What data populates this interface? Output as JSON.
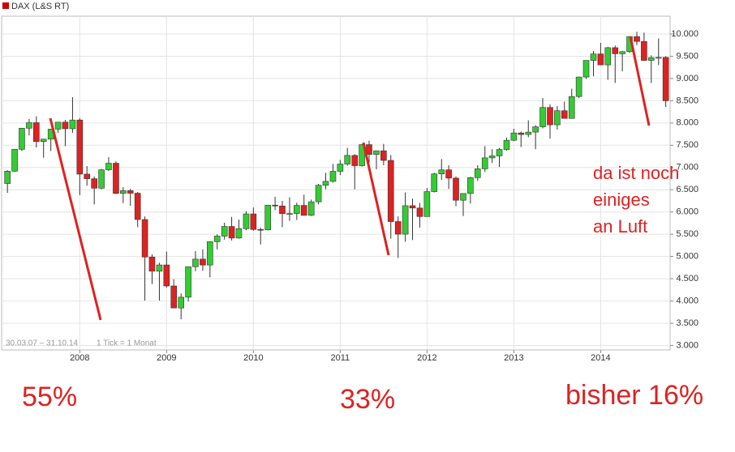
{
  "chart_data": {
    "type": "candlestick",
    "legend": "top-left",
    "grid": true,
    "up_color": "#33cc33",
    "down_color": "#dd2222",
    "series": [
      {
        "name": "DAX (L&S RT)",
        "color": "#cc0000",
        "open": [
          6640,
          6917,
          7408,
          7883,
          8007,
          7584,
          7638,
          7862,
          8019,
          7871,
          8067,
          6851,
          6748,
          6535,
          6949,
          7096,
          6418,
          6479,
          6422,
          5831,
          4988,
          4669,
          4810,
          4338,
          3843,
          4085,
          4770,
          4941,
          4809,
          5332,
          5458,
          5675,
          5415,
          5625,
          5957,
          5608,
          5598,
          6154,
          6136,
          5964,
          5966,
          6148,
          5925,
          6229,
          6601,
          6688,
          6914,
          7077,
          7272,
          7041,
          7514,
          7294,
          7376,
          7159,
          5785,
          5502,
          6141,
          6089,
          5898,
          6458,
          6856,
          6947,
          6761,
          6264,
          6416,
          6772,
          6970,
          7216,
          7260,
          7405,
          7612,
          7776,
          7742,
          7795,
          7914,
          8349,
          7959,
          8276,
          8103,
          8594,
          9033,
          9406,
          9552,
          9306,
          9692,
          9556,
          9603,
          9943,
          9833,
          9407,
          9470,
          9474
        ],
        "high": [
          6940,
          7410,
          7890,
          8090,
          8150,
          7640,
          7870,
          8020,
          8070,
          8580,
          8110,
          7030,
          6800,
          6970,
          7230,
          7140,
          6560,
          6520,
          6450,
          5900,
          5050,
          4860,
          5110,
          4490,
          4170,
          4770,
          5120,
          5160,
          5340,
          5500,
          5760,
          5890,
          5830,
          6020,
          6100,
          5650,
          6160,
          6340,
          6250,
          6330,
          6210,
          6390,
          6280,
          6630,
          6880,
          7080,
          7170,
          7440,
          7300,
          7530,
          7600,
          7380,
          7530,
          7280,
          5900,
          6440,
          6300,
          6200,
          6540,
          6880,
          7190,
          7050,
          6800,
          6420,
          6790,
          7050,
          7480,
          7410,
          7440,
          7670,
          7870,
          7810,
          8060,
          7950,
          8560,
          8420,
          8380,
          8480,
          8770,
          9040,
          9410,
          9620,
          9800,
          9710,
          9740,
          9620,
          9950,
          10050,
          10030,
          9520,
          9900,
          9500
        ],
        "low": [
          6430,
          6900,
          7370,
          7720,
          7450,
          7220,
          7370,
          7780,
          7480,
          7780,
          6380,
          6590,
          6170,
          6510,
          6920,
          6400,
          6200,
          6140,
          5660,
          4010,
          4380,
          4010,
          4300,
          3840,
          3590,
          3990,
          4670,
          4680,
          4530,
          5160,
          5380,
          5360,
          5400,
          5590,
          5580,
          5270,
          5590,
          6040,
          5660,
          5800,
          5820,
          5920,
          5910,
          6170,
          6510,
          6660,
          6830,
          7040,
          6510,
          7020,
          7110,
          6960,
          7050,
          5400,
          4970,
          5330,
          5370,
          5650,
          5900,
          6440,
          6720,
          6520,
          6130,
          5910,
          6190,
          6700,
          6900,
          7100,
          7010,
          7380,
          7590,
          7460,
          7680,
          7410,
          7880,
          7650,
          7850,
          8100,
          8100,
          8560,
          8990,
          9050,
          9300,
          8970,
          8900,
          9160,
          9580,
          9750,
          9400,
          8900,
          9300,
          8360
        ],
        "close": [
          6917,
          7408,
          7883,
          8007,
          7584,
          7638,
          7862,
          8019,
          7871,
          8067,
          6851,
          6748,
          6535,
          6949,
          7096,
          6418,
          6479,
          6422,
          5831,
          4988,
          4669,
          4810,
          4338,
          3843,
          4085,
          4770,
          4941,
          4809,
          5332,
          5458,
          5675,
          5415,
          5625,
          5957,
          5608,
          5598,
          6154,
          6136,
          5964,
          5966,
          6148,
          5925,
          6229,
          6601,
          6688,
          6914,
          7077,
          7272,
          7041,
          7514,
          7294,
          7376,
          7159,
          5785,
          5502,
          6141,
          6089,
          5898,
          6458,
          6856,
          6947,
          6761,
          6264,
          6416,
          6772,
          6970,
          7216,
          7260,
          7405,
          7612,
          7776,
          7742,
          7795,
          7914,
          8349,
          7959,
          8276,
          8103,
          8594,
          9033,
          9406,
          9552,
          9306,
          9692,
          9556,
          9603,
          9943,
          9833,
          9407,
          9470,
          9474,
          8500
        ]
      }
    ],
    "x": [
      2007.167,
      2007.25,
      2007.333,
      2007.417,
      2007.5,
      2007.583,
      2007.667,
      2007.75,
      2007.833,
      2007.917,
      2008,
      2008.083,
      2008.167,
      2008.25,
      2008.333,
      2008.417,
      2008.5,
      2008.583,
      2008.667,
      2008.75,
      2008.833,
      2008.917,
      2009,
      2009.083,
      2009.167,
      2009.25,
      2009.333,
      2009.417,
      2009.5,
      2009.583,
      2009.667,
      2009.75,
      2009.833,
      2009.917,
      2010,
      2010.083,
      2010.167,
      2010.25,
      2010.333,
      2010.417,
      2010.5,
      2010.583,
      2010.667,
      2010.75,
      2010.833,
      2010.917,
      2011,
      2011.083,
      2011.167,
      2011.25,
      2011.333,
      2011.417,
      2011.5,
      2011.583,
      2011.667,
      2011.75,
      2011.833,
      2011.917,
      2012,
      2012.083,
      2012.167,
      2012.25,
      2012.333,
      2012.417,
      2012.5,
      2012.583,
      2012.667,
      2012.75,
      2012.833,
      2012.917,
      2013,
      2013.083,
      2013.167,
      2013.25,
      2013.333,
      2013.417,
      2013.5,
      2013.583,
      2013.667,
      2013.75,
      2013.833,
      2013.917,
      2014,
      2014.083,
      2014.167,
      2014.25,
      2014.333,
      2014.417,
      2014.5,
      2014.583,
      2014.667,
      2014.75
    ],
    "xlim": [
      2007.1,
      2014.8
    ],
    "xticks": [
      2008,
      2009,
      2010,
      2011,
      2012,
      2013,
      2014
    ],
    "ylim": [
      2900,
      10400
    ],
    "yticks": [
      {
        "value": 3000,
        "label": "3.000"
      },
      {
        "value": 3500,
        "label": "3.500"
      },
      {
        "value": 4000,
        "label": "4.000"
      },
      {
        "value": 4500,
        "label": "4.500"
      },
      {
        "value": 5000,
        "label": "5.000"
      },
      {
        "value": 5500,
        "label": "5.500"
      },
      {
        "value": 6000,
        "label": "6.000"
      },
      {
        "value": 6500,
        "label": "6.500"
      },
      {
        "value": 7000,
        "label": "7.000"
      },
      {
        "value": 7500,
        "label": "7.500"
      },
      {
        "value": 8000,
        "label": "8.000"
      },
      {
        "value": 8500,
        "label": "8.500"
      },
      {
        "value": 9000,
        "label": "9.000"
      },
      {
        "value": 9500,
        "label": "9.500"
      },
      {
        "value": 10000,
        "label": "10.000"
      }
    ],
    "annotations": [
      "30.03.07 – 31.10.14",
      "1 Tick = 1 Monat",
      "55%",
      "33%",
      "bisher 16%",
      "da ist noch",
      "einiges",
      "an Luft"
    ]
  }
}
